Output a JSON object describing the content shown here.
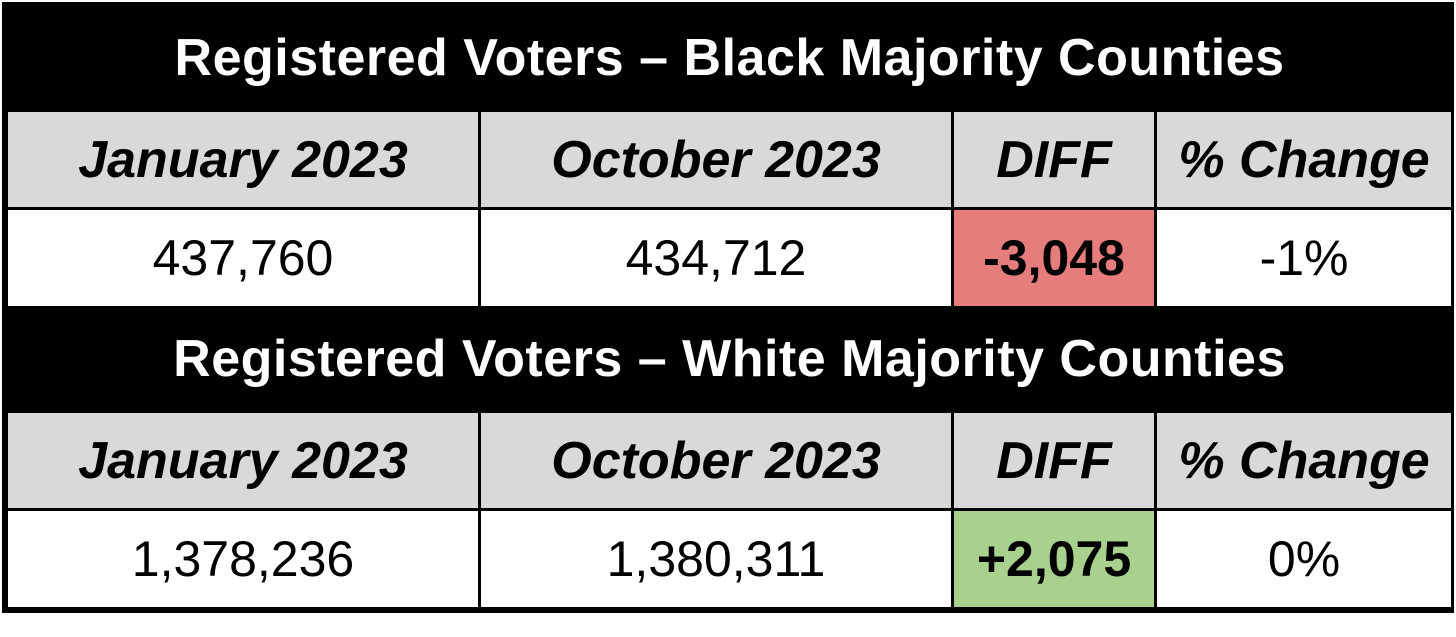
{
  "sections": [
    {
      "title": "Registered Voters – Black Majority Counties",
      "headers": [
        "January 2023",
        "October 2023",
        "DIFF",
        "% Change"
      ],
      "values": {
        "january": "437,760",
        "october": "434,712",
        "diff": "-3,048",
        "pct_change": "-1%"
      },
      "diff_color": "#e67c7c"
    },
    {
      "title": "Registered Voters – White Majority Counties",
      "headers": [
        "January 2023",
        "October 2023",
        "DIFF",
        "% Change"
      ],
      "values": {
        "january": "1,378,236",
        "october": "1,380,311",
        "diff": "+2,075",
        "pct_change": "0%"
      },
      "diff_color": "#a9d18e"
    }
  ]
}
